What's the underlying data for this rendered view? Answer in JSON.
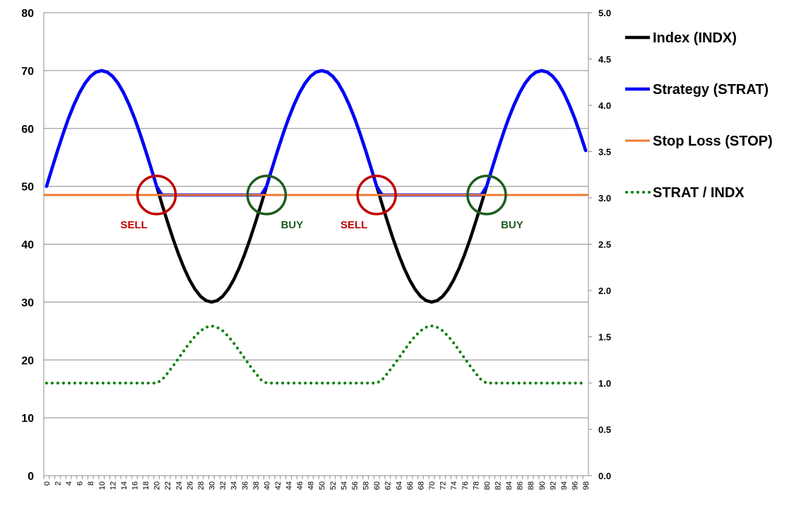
{
  "chart_data": {
    "type": "line",
    "x": [
      0,
      1,
      2,
      3,
      4,
      5,
      6,
      7,
      8,
      9,
      10,
      11,
      12,
      13,
      14,
      15,
      16,
      17,
      18,
      19,
      20,
      21,
      22,
      23,
      24,
      25,
      26,
      27,
      28,
      29,
      30,
      31,
      32,
      33,
      34,
      35,
      36,
      37,
      38,
      39,
      40,
      41,
      42,
      43,
      44,
      45,
      46,
      47,
      48,
      49,
      50,
      51,
      52,
      53,
      54,
      55,
      56,
      57,
      58,
      59,
      60,
      61,
      62,
      63,
      64,
      65,
      66,
      67,
      68,
      69,
      70,
      71,
      72,
      73,
      74,
      75,
      76,
      77,
      78,
      79,
      80,
      81,
      82,
      83,
      84,
      85,
      86,
      87,
      88,
      89,
      90,
      91,
      92,
      93,
      94,
      95,
      96,
      97,
      98
    ],
    "x_tick_labels": [
      "0",
      "2",
      "4",
      "6",
      "8",
      "10",
      "12",
      "14",
      "16",
      "18",
      "20",
      "22",
      "24",
      "26",
      "28",
      "30",
      "32",
      "34",
      "36",
      "38",
      "40",
      "42",
      "44",
      "46",
      "48",
      "50",
      "52",
      "54",
      "56",
      "58",
      "60",
      "62",
      "64",
      "66",
      "68",
      "70",
      "72",
      "74",
      "76",
      "78",
      "80",
      "82",
      "84",
      "86",
      "88",
      "90",
      "92",
      "94",
      "96",
      "98"
    ],
    "y_left": {
      "min": 0,
      "max": 80,
      "step": 10,
      "tick_labels": [
        "0",
        "10",
        "20",
        "30",
        "40",
        "50",
        "60",
        "70",
        "80"
      ]
    },
    "y_right": {
      "min": 0,
      "max": 5,
      "step": 0.5,
      "tick_labels": [
        "0.0",
        "0.5",
        "1.0",
        "1.5",
        "2.0",
        "2.5",
        "3.0",
        "3.5",
        "4.0",
        "4.5",
        "5.0"
      ]
    },
    "grid": true,
    "legend_position": "right",
    "series": [
      {
        "name": "Index (INDX)",
        "axis": "left",
        "color": "#000000",
        "style": "solid",
        "values": [
          50,
          53.13,
          56.18,
          59.08,
          61.76,
          64.14,
          66.18,
          67.82,
          69.02,
          69.75,
          70,
          69.75,
          69.02,
          67.82,
          66.18,
          64.14,
          61.76,
          59.08,
          56.18,
          53.13,
          50,
          46.87,
          43.82,
          40.92,
          38.24,
          35.86,
          33.82,
          32.18,
          30.98,
          30.25,
          30,
          30.25,
          30.98,
          32.18,
          33.82,
          35.86,
          38.24,
          40.92,
          43.82,
          46.87,
          50,
          53.13,
          56.18,
          59.08,
          61.76,
          64.14,
          66.18,
          67.82,
          69.02,
          69.75,
          70,
          69.75,
          69.02,
          67.82,
          66.18,
          64.14,
          61.76,
          59.08,
          56.18,
          53.13,
          50,
          46.87,
          43.82,
          40.92,
          38.24,
          35.86,
          33.82,
          32.18,
          30.98,
          30.25,
          30,
          30.25,
          30.98,
          32.18,
          33.82,
          35.86,
          38.24,
          40.92,
          43.82,
          46.87,
          50,
          53.13,
          56.18,
          59.08,
          61.76,
          64.14,
          66.18,
          67.82,
          69.02,
          69.75,
          70,
          69.75,
          69.02,
          67.82,
          66.18,
          64.14,
          61.76,
          59.08,
          56.18
        ]
      },
      {
        "name": "Strategy (STRAT)",
        "axis": "left",
        "color": "#0000ff",
        "style": "solid",
        "values": [
          50,
          53.13,
          56.18,
          59.08,
          61.76,
          64.14,
          66.18,
          67.82,
          69.02,
          69.75,
          70,
          69.75,
          69.02,
          67.82,
          66.18,
          64.14,
          61.76,
          59.08,
          56.18,
          53.13,
          50,
          48.5,
          48.5,
          48.5,
          48.5,
          48.5,
          48.5,
          48.5,
          48.5,
          48.5,
          48.5,
          48.5,
          48.5,
          48.5,
          48.5,
          48.5,
          48.5,
          48.5,
          48.5,
          48.5,
          50,
          53.13,
          56.18,
          59.08,
          61.76,
          64.14,
          66.18,
          67.82,
          69.02,
          69.75,
          70,
          69.75,
          69.02,
          67.82,
          66.18,
          64.14,
          61.76,
          59.08,
          56.18,
          53.13,
          50,
          48.5,
          48.5,
          48.5,
          48.5,
          48.5,
          48.5,
          48.5,
          48.5,
          48.5,
          48.5,
          48.5,
          48.5,
          48.5,
          48.5,
          48.5,
          48.5,
          48.5,
          48.5,
          48.5,
          50,
          53.13,
          56.18,
          59.08,
          61.76,
          64.14,
          66.18,
          67.82,
          69.02,
          69.75,
          70,
          69.75,
          69.02,
          67.82,
          66.18,
          64.14,
          61.76,
          59.08,
          56.18
        ]
      },
      {
        "name": "Stop Loss (STOP)",
        "axis": "left",
        "color": "#ed7d31",
        "style": "solid",
        "constant": 48.5
      },
      {
        "name": "STRAT / INDX",
        "axis": "right",
        "color": "#008000",
        "style": "dotted",
        "values": [
          1,
          1,
          1,
          1,
          1,
          1,
          1,
          1,
          1,
          1,
          1,
          1,
          1,
          1,
          1,
          1,
          1,
          1,
          1,
          1,
          1,
          1.035,
          1.107,
          1.185,
          1.268,
          1.352,
          1.434,
          1.507,
          1.566,
          1.603,
          1.617,
          1.603,
          1.566,
          1.507,
          1.434,
          1.352,
          1.268,
          1.185,
          1.107,
          1.035,
          1,
          1,
          1,
          1,
          1,
          1,
          1,
          1,
          1,
          1,
          1,
          1,
          1,
          1,
          1,
          1,
          1,
          1,
          1,
          1,
          1,
          1.035,
          1.107,
          1.185,
          1.268,
          1.352,
          1.434,
          1.507,
          1.566,
          1.603,
          1.617,
          1.603,
          1.566,
          1.507,
          1.434,
          1.352,
          1.268,
          1.185,
          1.107,
          1.035,
          1,
          1,
          1,
          1,
          1,
          1,
          1,
          1,
          1,
          1,
          1,
          1,
          1,
          1,
          1,
          1,
          1,
          1,
          1
        ]
      }
    ],
    "annotations": [
      {
        "text": "SELL",
        "x": 20,
        "y": 48.5,
        "color": "#c00000"
      },
      {
        "text": "BUY",
        "x": 40,
        "y": 48.5,
        "color": "#1e5c1e"
      },
      {
        "text": "SELL",
        "x": 60,
        "y": 48.5,
        "color": "#c00000"
      },
      {
        "text": "BUY",
        "x": 80,
        "y": 48.5,
        "color": "#1e5c1e"
      }
    ]
  }
}
